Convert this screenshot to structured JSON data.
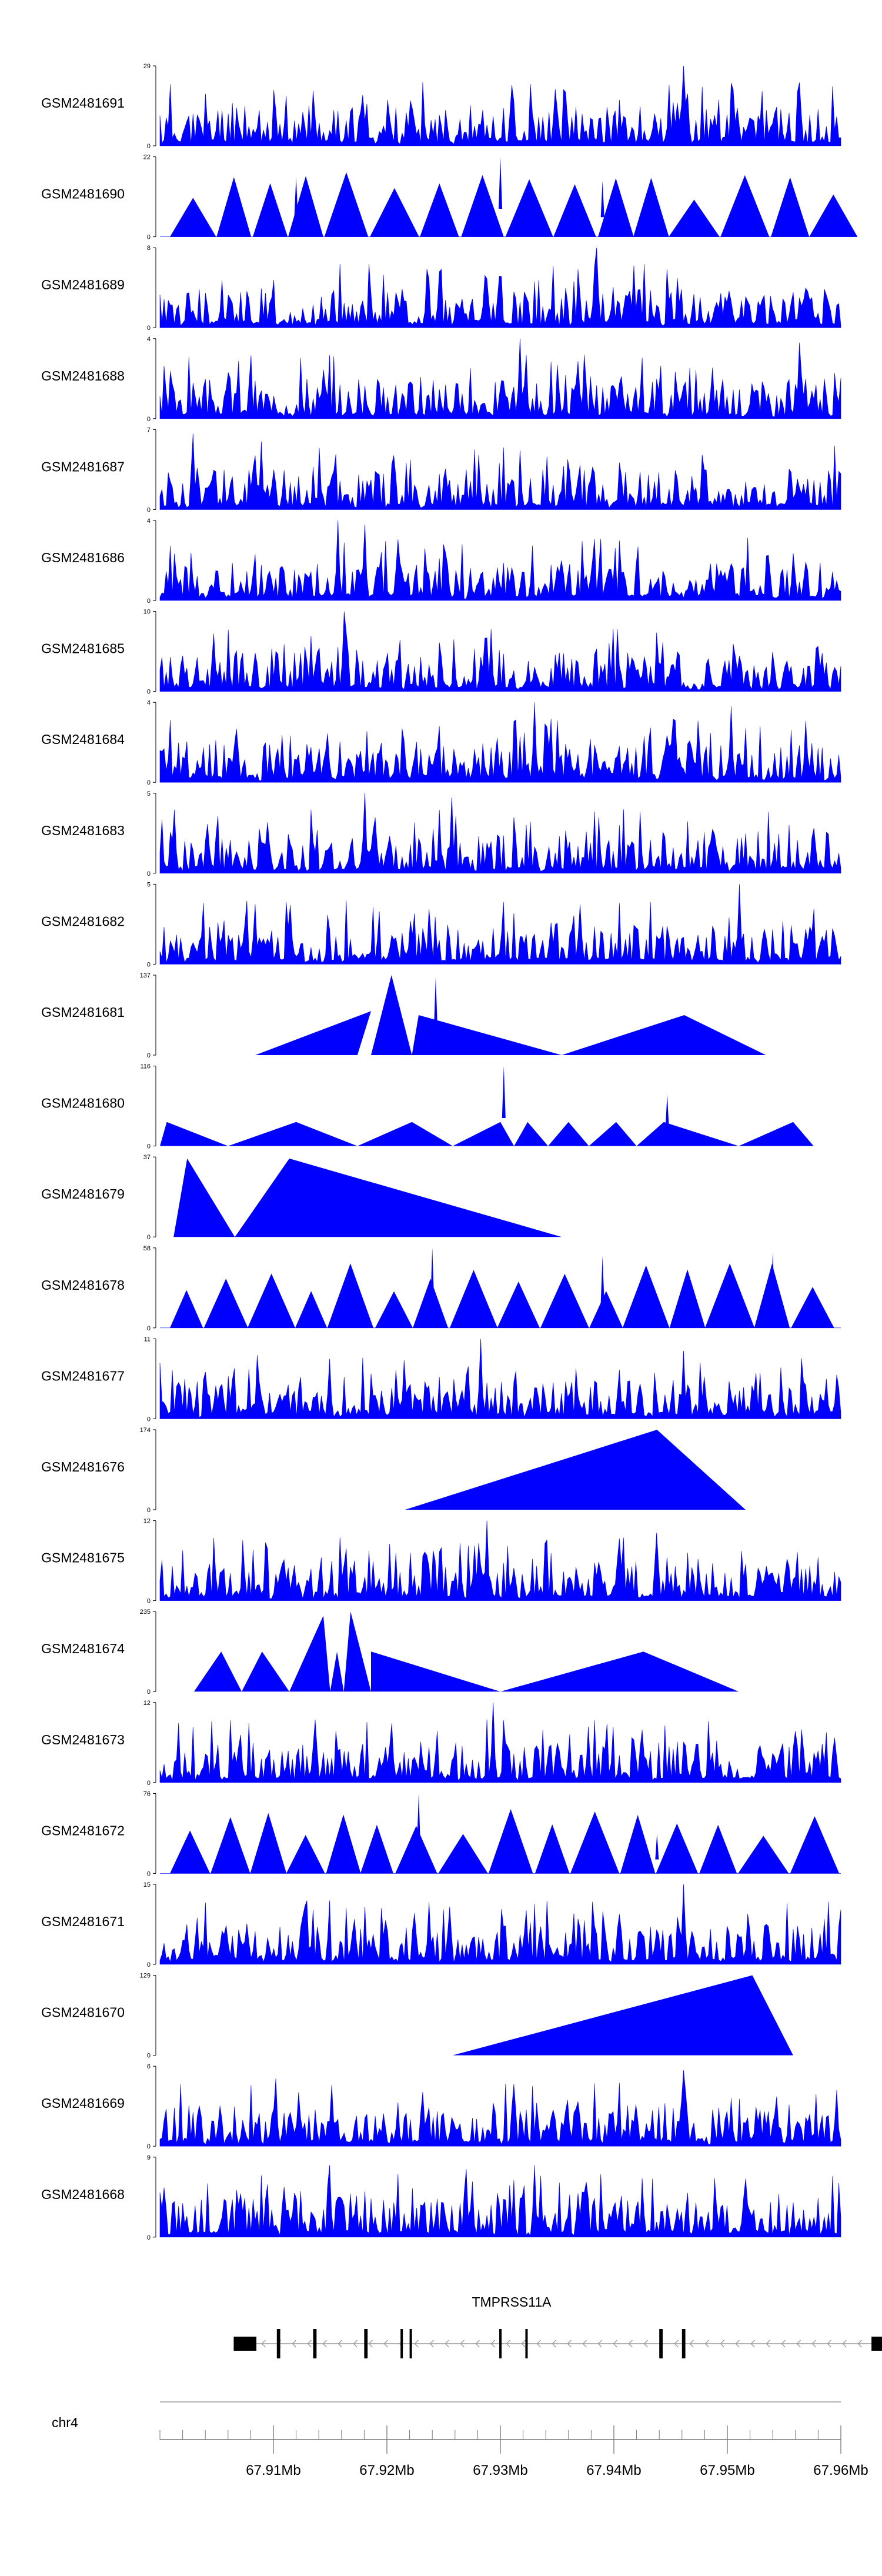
{
  "colors": {
    "signal": "#0000ff",
    "axis": "#000000",
    "gene": "#000000",
    "intron": "#999999"
  },
  "tracks": [
    {
      "sample": "GSM2481691",
      "ymax": "29",
      "ymin": "0",
      "pattern": "noise",
      "seed": 11,
      "peaks": [
        [
          0.77,
          1.0
        ],
        [
          0.775,
          0.65
        ],
        [
          0.765,
          0.5
        ]
      ]
    },
    {
      "sample": "GSM2481690",
      "ymax": "22",
      "ymin": "0",
      "pattern": "saw",
      "seed": 12,
      "peaks": [
        [
          0.5,
          1.0
        ],
        [
          0.2,
          0.75
        ],
        [
          0.65,
          0.7
        ]
      ]
    },
    {
      "sample": "GSM2481689",
      "ymax": "8",
      "ymin": "0",
      "pattern": "noise",
      "seed": 13,
      "peaks": [
        [
          0.64,
          1.0
        ],
        [
          0.41,
          0.7
        ]
      ]
    },
    {
      "sample": "GSM2481688",
      "ymax": "4",
      "ymin": "0",
      "pattern": "noise",
      "seed": 14,
      "peaks": [
        [
          0.53,
          1.0
        ],
        [
          0.94,
          0.95
        ]
      ]
    },
    {
      "sample": "GSM2481687",
      "ymax": "7",
      "ymin": "0",
      "pattern": "noise",
      "seed": 15,
      "peaks": [
        [
          0.05,
          0.95
        ],
        [
          0.15,
          0.85
        ]
      ]
    },
    {
      "sample": "GSM2481686",
      "ymax": "4",
      "ymin": "0",
      "pattern": "noise",
      "seed": 16,
      "peaks": [
        [
          0.26,
          1.0
        ],
        [
          0.3,
          0.95
        ]
      ]
    },
    {
      "sample": "GSM2481685",
      "ymax": "10",
      "ymin": "0",
      "pattern": "noise",
      "seed": 17,
      "peaks": [
        [
          0.27,
          1.0
        ],
        [
          0.17,
          0.5
        ]
      ]
    },
    {
      "sample": "GSM2481684",
      "ymax": "4",
      "ymin": "0",
      "pattern": "noise",
      "seed": 18,
      "peaks": [
        [
          0.55,
          1.0
        ],
        [
          0.84,
          0.95
        ]
      ]
    },
    {
      "sample": "GSM2481683",
      "ymax": "5",
      "ymin": "0",
      "pattern": "noise",
      "seed": 19,
      "peaks": [
        [
          0.3,
          1.0
        ],
        [
          0.43,
          0.95
        ]
      ]
    },
    {
      "sample": "GSM2481682",
      "ymax": "5",
      "ymin": "0",
      "pattern": "noise",
      "seed": 20,
      "peaks": [
        [
          0.85,
          1.0
        ],
        [
          0.14,
          0.75
        ]
      ]
    },
    {
      "sample": "GSM2481681",
      "ymax": "137",
      "ymin": "0",
      "pattern": "tri",
      "tris": [
        [
          0.14,
          0.31,
          0.29,
          0.55
        ],
        [
          0.31,
          0.34,
          0.37,
          1.0
        ],
        [
          0.37,
          0.38,
          0.59,
          0.5
        ],
        [
          0.59,
          0.77,
          0.89,
          0.5
        ]
      ],
      "spikes": [
        [
          0.405,
          0.98
        ]
      ]
    },
    {
      "sample": "GSM2481680",
      "ymax": "116",
      "ymin": "0",
      "pattern": "tri",
      "tris": [
        [
          0.0,
          0.01,
          0.1,
          0.3
        ],
        [
          0.1,
          0.2,
          0.29,
          0.3
        ],
        [
          0.29,
          0.37,
          0.43,
          0.3
        ],
        [
          0.43,
          0.5,
          0.52,
          0.3
        ],
        [
          0.52,
          0.54,
          0.57,
          0.3
        ],
        [
          0.57,
          0.6,
          0.63,
          0.3
        ],
        [
          0.63,
          0.67,
          0.7,
          0.3
        ],
        [
          0.7,
          0.74,
          0.85,
          0.3
        ],
        [
          0.85,
          0.93,
          0.96,
          0.3
        ]
      ],
      "spikes": [
        [
          0.505,
          1.0
        ],
        [
          0.745,
          0.65
        ]
      ]
    },
    {
      "sample": "GSM2481679",
      "ymax": "37",
      "ymin": "0",
      "pattern": "tri",
      "tris": [
        [
          0.02,
          0.04,
          0.11,
          0.98
        ],
        [
          0.11,
          0.19,
          0.59,
          0.98
        ]
      ],
      "spikes": []
    },
    {
      "sample": "GSM2481678",
      "ymax": "58",
      "ymin": "0",
      "pattern": "saw",
      "seed": 22,
      "peaks": [
        [
          0.4,
          1.0
        ],
        [
          0.9,
          0.95
        ],
        [
          0.65,
          0.9
        ]
      ]
    },
    {
      "sample": "GSM2481677",
      "ymax": "11",
      "ymin": "0",
      "pattern": "noise",
      "seed": 23,
      "peaks": [
        [
          0.47,
          1.0
        ],
        [
          0.77,
          0.85
        ],
        [
          0.25,
          0.75
        ],
        [
          0.995,
          0.55
        ]
      ]
    },
    {
      "sample": "GSM2481676",
      "ymax": "174",
      "ymin": "0",
      "pattern": "tri",
      "tris": [
        [
          0.36,
          0.73,
          0.86,
          1.0
        ]
      ],
      "spikes": []
    },
    {
      "sample": "GSM2481675",
      "ymax": "12",
      "ymin": "0",
      "pattern": "noise",
      "seed": 24,
      "peaks": [
        [
          0.48,
          1.0
        ],
        [
          0.73,
          0.85
        ]
      ]
    },
    {
      "sample": "GSM2481674",
      "ymax": "235",
      "ymin": "0",
      "pattern": "tri",
      "tris": [
        [
          0.05,
          0.09,
          0.12,
          0.5
        ],
        [
          0.12,
          0.15,
          0.19,
          0.5
        ],
        [
          0.19,
          0.24,
          0.25,
          0.95
        ],
        [
          0.25,
          0.26,
          0.27,
          0.5
        ],
        [
          0.27,
          0.28,
          0.31,
          1.0
        ],
        [
          0.31,
          0.31,
          0.5,
          0.5
        ],
        [
          0.5,
          0.71,
          0.85,
          0.5
        ]
      ],
      "spikes": []
    },
    {
      "sample": "GSM2481673",
      "ymax": "12",
      "ymin": "0",
      "pattern": "noise",
      "seed": 25,
      "peaks": [
        [
          0.49,
          1.0
        ],
        [
          0.63,
          0.7
        ]
      ]
    },
    {
      "sample": "GSM2481672",
      "ymax": "76",
      "ymin": "0",
      "pattern": "saw",
      "seed": 26,
      "peaks": [
        [
          0.38,
          1.0
        ],
        [
          0.73,
          0.5
        ]
      ]
    },
    {
      "sample": "GSM2481671",
      "ymax": "15",
      "ymin": "0",
      "pattern": "noise",
      "seed": 27,
      "peaks": [
        [
          0.77,
          1.0
        ],
        [
          0.33,
          0.55
        ]
      ]
    },
    {
      "sample": "GSM2481670",
      "ymax": "129",
      "ymin": "0",
      "pattern": "tri",
      "tris": [
        [
          0.43,
          0.87,
          0.93,
          1.0
        ]
      ],
      "spikes": []
    },
    {
      "sample": "GSM2481669",
      "ymax": "6",
      "ymin": "0",
      "pattern": "noise",
      "seed": 28,
      "peaks": [
        [
          0.17,
          0.85
        ],
        [
          0.77,
          0.95
        ],
        [
          0.995,
          0.7
        ]
      ]
    },
    {
      "sample": "GSM2481668",
      "ymax": "9",
      "ymin": "0",
      "pattern": "noise",
      "seed": 29,
      "peaks": [
        [
          0.25,
          0.9
        ],
        [
          0.45,
          0.85
        ],
        [
          0.55,
          0.9
        ]
      ]
    }
  ],
  "gene": {
    "name": "TMPRSS11A",
    "strand": "-",
    "start_mb": 67.9065,
    "end_mb": 67.9637,
    "exons_mb": [
      [
        67.9065,
        67.9085
      ],
      [
        67.9103,
        67.9106
      ],
      [
        67.9135,
        67.9138
      ],
      [
        67.918,
        67.9183
      ],
      [
        67.9212,
        67.9214
      ],
      [
        67.922,
        67.9222
      ],
      [
        67.9299,
        67.9301
      ],
      [
        67.9322,
        67.9324
      ],
      [
        67.944,
        67.9443
      ],
      [
        67.946,
        67.9463
      ],
      [
        67.9627,
        67.9637
      ]
    ]
  },
  "chromosome": "chr4",
  "axis": {
    "range_mb": [
      67.9,
      67.96
    ],
    "majors": [
      {
        "pos": 67.91,
        "label": "67.91Mb"
      },
      {
        "pos": 67.92,
        "label": "67.92Mb"
      },
      {
        "pos": 67.93,
        "label": "67.93Mb"
      },
      {
        "pos": 67.94,
        "label": "67.94Mb"
      },
      {
        "pos": 67.95,
        "label": "67.95Mb"
      },
      {
        "pos": 67.96,
        "label": "67.96Mb"
      }
    ],
    "minor_step_mb": 0.002
  },
  "chart_data": {
    "type": "area",
    "title": "",
    "xlabel": "chr4",
    "ylabel": "",
    "x_range_mb": [
      67.9,
      67.96
    ],
    "x_ticks": [
      "67.91Mb",
      "67.92Mb",
      "67.93Mb",
      "67.94Mb",
      "67.95Mb",
      "67.96Mb"
    ],
    "series": [
      {
        "name": "GSM2481691",
        "ylim": [
          0,
          29
        ]
      },
      {
        "name": "GSM2481690",
        "ylim": [
          0,
          22
        ]
      },
      {
        "name": "GSM2481689",
        "ylim": [
          0,
          8
        ]
      },
      {
        "name": "GSM2481688",
        "ylim": [
          0,
          4
        ]
      },
      {
        "name": "GSM2481687",
        "ylim": [
          0,
          7
        ]
      },
      {
        "name": "GSM2481686",
        "ylim": [
          0,
          4
        ]
      },
      {
        "name": "GSM2481685",
        "ylim": [
          0,
          10
        ]
      },
      {
        "name": "GSM2481684",
        "ylim": [
          0,
          4
        ]
      },
      {
        "name": "GSM2481683",
        "ylim": [
          0,
          5
        ]
      },
      {
        "name": "GSM2481682",
        "ylim": [
          0,
          5
        ]
      },
      {
        "name": "GSM2481681",
        "ylim": [
          0,
          137
        ]
      },
      {
        "name": "GSM2481680",
        "ylim": [
          0,
          116
        ]
      },
      {
        "name": "GSM2481679",
        "ylim": [
          0,
          37
        ]
      },
      {
        "name": "GSM2481678",
        "ylim": [
          0,
          58
        ]
      },
      {
        "name": "GSM2481677",
        "ylim": [
          0,
          11
        ]
      },
      {
        "name": "GSM2481676",
        "ylim": [
          0,
          174
        ]
      },
      {
        "name": "GSM2481675",
        "ylim": [
          0,
          12
        ]
      },
      {
        "name": "GSM2481674",
        "ylim": [
          0,
          235
        ]
      },
      {
        "name": "GSM2481673",
        "ylim": [
          0,
          12
        ]
      },
      {
        "name": "GSM2481672",
        "ylim": [
          0,
          76
        ]
      },
      {
        "name": "GSM2481671",
        "ylim": [
          0,
          15
        ]
      },
      {
        "name": "GSM2481670",
        "ylim": [
          0,
          129
        ]
      },
      {
        "name": "GSM2481669",
        "ylim": [
          0,
          6
        ]
      },
      {
        "name": "GSM2481668",
        "ylim": [
          0,
          9
        ]
      }
    ],
    "gene_track": {
      "gene": "TMPRSS11A",
      "strand": "-"
    }
  }
}
